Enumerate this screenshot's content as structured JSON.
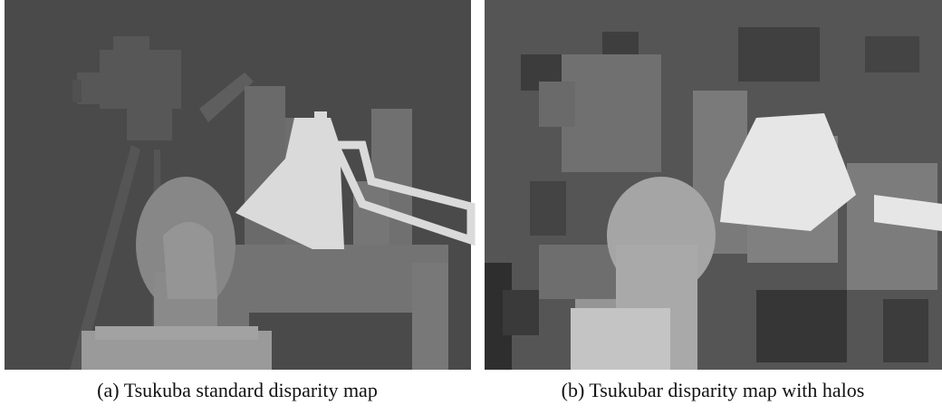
{
  "figure": {
    "panels": [
      {
        "caption": "(a) Tsukuba standard disparity map"
      },
      {
        "caption": "(b) Tsukubar disparity map with halos"
      }
    ]
  }
}
